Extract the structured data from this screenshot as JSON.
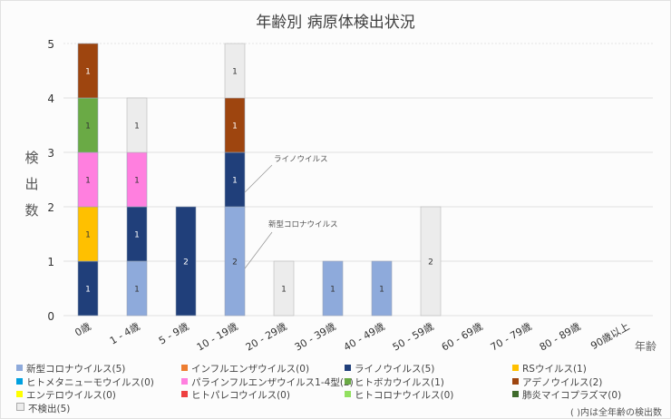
{
  "chart_data": {
    "type": "bar",
    "stacked": true,
    "title": "年齢別 病原体検出状況",
    "xlabel": "年齢",
    "ylabel": "検出数",
    "ylim": [
      0,
      5
    ],
    "yticks": [
      0,
      1,
      2,
      3,
      4,
      5
    ],
    "grid": true,
    "legend_position": "bottom",
    "categories": [
      "0歳",
      "1 - 4歳",
      "5 - 9歳",
      "10 - 19歳",
      "20 - 29歳",
      "30 - 39歳",
      "40 - 49歳",
      "50 - 59歳",
      "60 - 69歳",
      "70 - 79歳",
      "80 - 89歳",
      "90歳以上"
    ],
    "series": [
      {
        "name": "新型コロナウイルス",
        "total": 5,
        "color": "#8eaadb",
        "label_color": "#333333",
        "values": [
          0,
          1,
          0,
          2,
          0,
          1,
          1,
          0,
          0,
          0,
          0,
          0
        ]
      },
      {
        "name": "インフルエンザウイルス",
        "total": 0,
        "color": "#ed7d31",
        "label_color": "#ffffff",
        "values": [
          0,
          0,
          0,
          0,
          0,
          0,
          0,
          0,
          0,
          0,
          0,
          0
        ]
      },
      {
        "name": "ライノウイルス",
        "total": 5,
        "color": "#203f7a",
        "label_color": "#ffffff",
        "values": [
          1,
          1,
          2,
          1,
          0,
          0,
          0,
          0,
          0,
          0,
          0,
          0
        ]
      },
      {
        "name": "RSウイルス",
        "total": 1,
        "color": "#ffc000",
        "label_color": "#333333",
        "values": [
          1,
          0,
          0,
          0,
          0,
          0,
          0,
          0,
          0,
          0,
          0,
          0
        ]
      },
      {
        "name": "ヒトメタニューモウイルス",
        "total": 0,
        "color": "#00a0e0",
        "label_color": "#ffffff",
        "values": [
          0,
          0,
          0,
          0,
          0,
          0,
          0,
          0,
          0,
          0,
          0,
          0
        ]
      },
      {
        "name": "パラインフルエンザウイルス1-4型",
        "total": 2,
        "color": "#ff7fdf",
        "label_color": "#333333",
        "values": [
          1,
          1,
          0,
          0,
          0,
          0,
          0,
          0,
          0,
          0,
          0,
          0
        ]
      },
      {
        "name": "ヒトボカウイルス",
        "total": 1,
        "color": "#6aaa45",
        "label_color": "#333333",
        "values": [
          1,
          0,
          0,
          0,
          0,
          0,
          0,
          0,
          0,
          0,
          0,
          0
        ]
      },
      {
        "name": "アデノウイルス",
        "total": 2,
        "color": "#9e450f",
        "label_color": "#ffffff",
        "values": [
          1,
          0,
          0,
          1,
          0,
          0,
          0,
          0,
          0,
          0,
          0,
          0
        ]
      },
      {
        "name": "エンテロウイルス",
        "total": 0,
        "color": "#ffff00",
        "label_color": "#333333",
        "values": [
          0,
          0,
          0,
          0,
          0,
          0,
          0,
          0,
          0,
          0,
          0,
          0
        ]
      },
      {
        "name": "ヒトパレコウイルス",
        "total": 0,
        "color": "#ee4040",
        "label_color": "#ffffff",
        "values": [
          0,
          0,
          0,
          0,
          0,
          0,
          0,
          0,
          0,
          0,
          0,
          0
        ]
      },
      {
        "name": "ヒトコロナウイルス",
        "total": 0,
        "color": "#92e060",
        "label_color": "#333333",
        "values": [
          0,
          0,
          0,
          0,
          0,
          0,
          0,
          0,
          0,
          0,
          0,
          0
        ]
      },
      {
        "name": "肺炎マイコプラズマ",
        "total": 0,
        "color": "#3f6b2c",
        "label_color": "#ffffff",
        "values": [
          0,
          0,
          0,
          0,
          0,
          0,
          0,
          0,
          0,
          0,
          0,
          0
        ]
      },
      {
        "name": "不検出",
        "total": 5,
        "color": "#ececec",
        "label_color": "#333333",
        "values": [
          0,
          1,
          0,
          1,
          1,
          0,
          0,
          2,
          0,
          0,
          0,
          0
        ]
      }
    ],
    "annotations": [
      {
        "text": "ライノウイルス",
        "category": "10 - 19歳",
        "series": "ライノウイルス"
      },
      {
        "text": "新型コロナウイルス",
        "category": "10 - 19歳",
        "series": "新型コロナウイルス"
      }
    ],
    "note": "( )内は全年齢の検出数"
  },
  "legend_order": [
    "新型コロナウイルス",
    "インフルエンザウイルス",
    "ライノウイルス",
    "RSウイルス",
    "ヒトメタニューモウイルス",
    "パラインフルエンザウイルス1-4型",
    "ヒトボカウイルス",
    "アデノウイルス",
    "エンテロウイルス",
    "ヒトパレコウイルス",
    "ヒトコロナウイルス",
    "肺炎マイコプラズマ",
    "不検出"
  ]
}
